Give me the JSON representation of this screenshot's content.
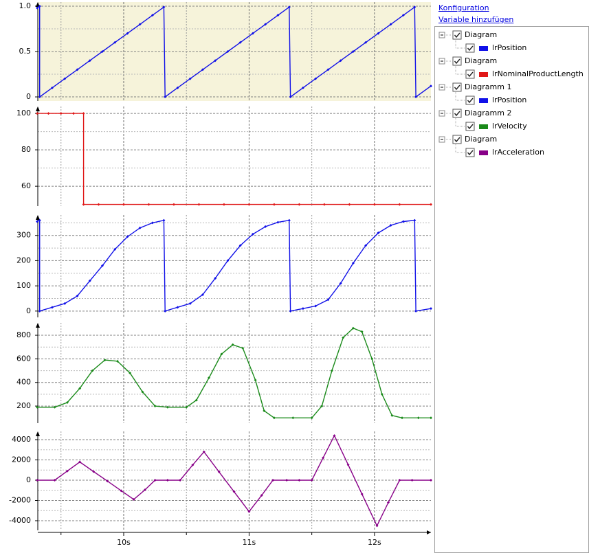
{
  "links": [
    "Konfiguration",
    "Variable hinzufügen"
  ],
  "chart_data": [
    {
      "type": "line",
      "name": "Diagram",
      "xlim": [
        9.315,
        12.45
      ],
      "ylim": [
        -0.045,
        1.045
      ],
      "yticks": [
        0,
        0.5,
        {
          "value": 1,
          "label": "1.0"
        }
      ],
      "yminorticks": [
        0.25,
        0.75
      ],
      "background": "#f6f3da",
      "x": [
        9.31,
        9.33,
        9.33,
        9.43,
        9.53,
        9.63,
        9.73,
        9.83,
        9.93,
        10.03,
        10.13,
        10.23,
        10.32,
        10.33,
        10.43,
        10.53,
        10.63,
        10.73,
        10.83,
        10.93,
        11.03,
        11.13,
        11.23,
        11.32,
        11.33,
        11.43,
        11.53,
        11.63,
        11.73,
        11.83,
        11.93,
        12.03,
        12.13,
        12.23,
        12.32,
        12.33,
        12.45
      ],
      "series": [
        {
          "name": "lrPosition",
          "color": "#1010e8",
          "values": [
            0.98,
            1.0,
            0,
            0.1,
            0.2,
            0.3,
            0.4,
            0.5,
            0.6,
            0.7,
            0.8,
            0.9,
            0.99,
            0,
            0.1,
            0.2,
            0.3,
            0.4,
            0.5,
            0.6,
            0.7,
            0.8,
            0.9,
            0.99,
            0,
            0.1,
            0.2,
            0.3,
            0.4,
            0.5,
            0.6,
            0.7,
            0.8,
            0.9,
            0.99,
            0,
            0.12
          ]
        }
      ]
    },
    {
      "type": "line",
      "name": "Diagram",
      "xlim": [
        9.315,
        12.45
      ],
      "ylim": [
        49.1,
        103.8
      ],
      "yticks": [
        60,
        80,
        100
      ],
      "yminorticks": [
        70,
        90
      ],
      "x": [
        9.31,
        9.4,
        9.5,
        9.6,
        9.68,
        9.68,
        9.8,
        10,
        10.2,
        10.4,
        10.6,
        10.8,
        11,
        11.2,
        11.4,
        11.6,
        11.8,
        12,
        12.2,
        12.45
      ],
      "series": [
        {
          "name": "lrNominalProductLength",
          "color": "#e01818",
          "values": [
            100,
            100,
            100,
            100,
            100,
            50,
            50,
            50,
            50,
            50,
            50,
            50,
            50,
            50,
            50,
            50,
            50,
            50,
            50,
            50
          ]
        }
      ]
    },
    {
      "type": "line",
      "name": "Diagramm 1",
      "xlim": [
        9.315,
        12.45
      ],
      "ylim": [
        -25,
        381
      ],
      "yticks": [
        0,
        100,
        200,
        300
      ],
      "yminorticks": [
        50,
        150,
        250,
        350
      ],
      "x": [
        9.31,
        9.33,
        9.33,
        9.43,
        9.53,
        9.63,
        9.73,
        9.83,
        9.93,
        10.03,
        10.13,
        10.23,
        10.32,
        10.33,
        10.43,
        10.53,
        10.63,
        10.73,
        10.83,
        10.93,
        11.03,
        11.13,
        11.23,
        11.32,
        11.33,
        11.43,
        11.53,
        11.63,
        11.73,
        11.83,
        11.93,
        12.03,
        12.13,
        12.23,
        12.32,
        12.33,
        12.45
      ],
      "series": [
        {
          "name": "lrPosition",
          "color": "#1010e8",
          "values": [
            355,
            360,
            0,
            15,
            30,
            60,
            120,
            180,
            245,
            295,
            330,
            350,
            360,
            0,
            15,
            30,
            65,
            130,
            200,
            260,
            305,
            335,
            352,
            360,
            0,
            10,
            20,
            45,
            110,
            190,
            260,
            310,
            340,
            355,
            360,
            0,
            10
          ]
        }
      ]
    },
    {
      "type": "line",
      "name": "Diagramm 2",
      "xlim": [
        9.315,
        12.45
      ],
      "ylim": [
        55,
        905
      ],
      "yticks": [
        200,
        400,
        600,
        800
      ],
      "yminorticks": [
        300,
        500,
        700
      ],
      "x": [
        9.31,
        9.45,
        9.55,
        9.65,
        9.75,
        9.85,
        9.95,
        10.05,
        10.15,
        10.25,
        10.35,
        10.5,
        10.58,
        10.68,
        10.78,
        10.87,
        10.95,
        11.05,
        11.12,
        11.2,
        11.35,
        11.5,
        11.58,
        11.66,
        11.75,
        11.83,
        11.9,
        11.98,
        12.06,
        12.14,
        12.22,
        12.35,
        12.45
      ],
      "series": [
        {
          "name": "lrVelocity",
          "color": "#1a8a1a",
          "values": [
            190,
            190,
            230,
            350,
            500,
            590,
            580,
            480,
            320,
            200,
            190,
            190,
            250,
            440,
            640,
            720,
            690,
            420,
            160,
            100,
            100,
            100,
            200,
            500,
            780,
            860,
            830,
            600,
            300,
            120,
            100,
            100,
            100
          ]
        }
      ]
    },
    {
      "type": "line",
      "name": "Diagram",
      "xlim": [
        9.315,
        12.45
      ],
      "ylim": [
        -4949,
        4814
      ],
      "yticks": [
        -4000,
        -2000,
        0,
        2000,
        4000
      ],
      "yminorticks": [
        -3000,
        -1000,
        1000,
        3000
      ],
      "xticks": [
        {
          "value": 10,
          "label": "10s"
        },
        {
          "value": 11,
          "label": "11s"
        },
        {
          "value": 12,
          "label": "12s"
        }
      ],
      "xminorticks": [
        9.5,
        10.5,
        11.5
      ],
      "x": [
        9.31,
        9.45,
        9.55,
        9.65,
        9.76,
        9.87,
        9.98,
        10.08,
        10.17,
        10.25,
        10.35,
        10.45,
        10.55,
        10.64,
        10.76,
        10.88,
        11.0,
        11.1,
        11.19,
        11.3,
        11.4,
        11.5,
        11.59,
        11.68,
        11.79,
        11.9,
        12.02,
        12.11,
        12.2,
        12.3,
        12.45
      ],
      "series": [
        {
          "name": "lrAcceleration",
          "color": "#880088",
          "values": [
            0,
            0,
            900,
            1800,
            850,
            -90,
            -1040,
            -1900,
            -950,
            0,
            0,
            0,
            1500,
            2800,
            830,
            -1130,
            -3100,
            -1500,
            0,
            0,
            0,
            0,
            2200,
            4400,
            1520,
            -1360,
            -4500,
            -2200,
            0,
            0,
            0
          ]
        }
      ]
    }
  ]
}
